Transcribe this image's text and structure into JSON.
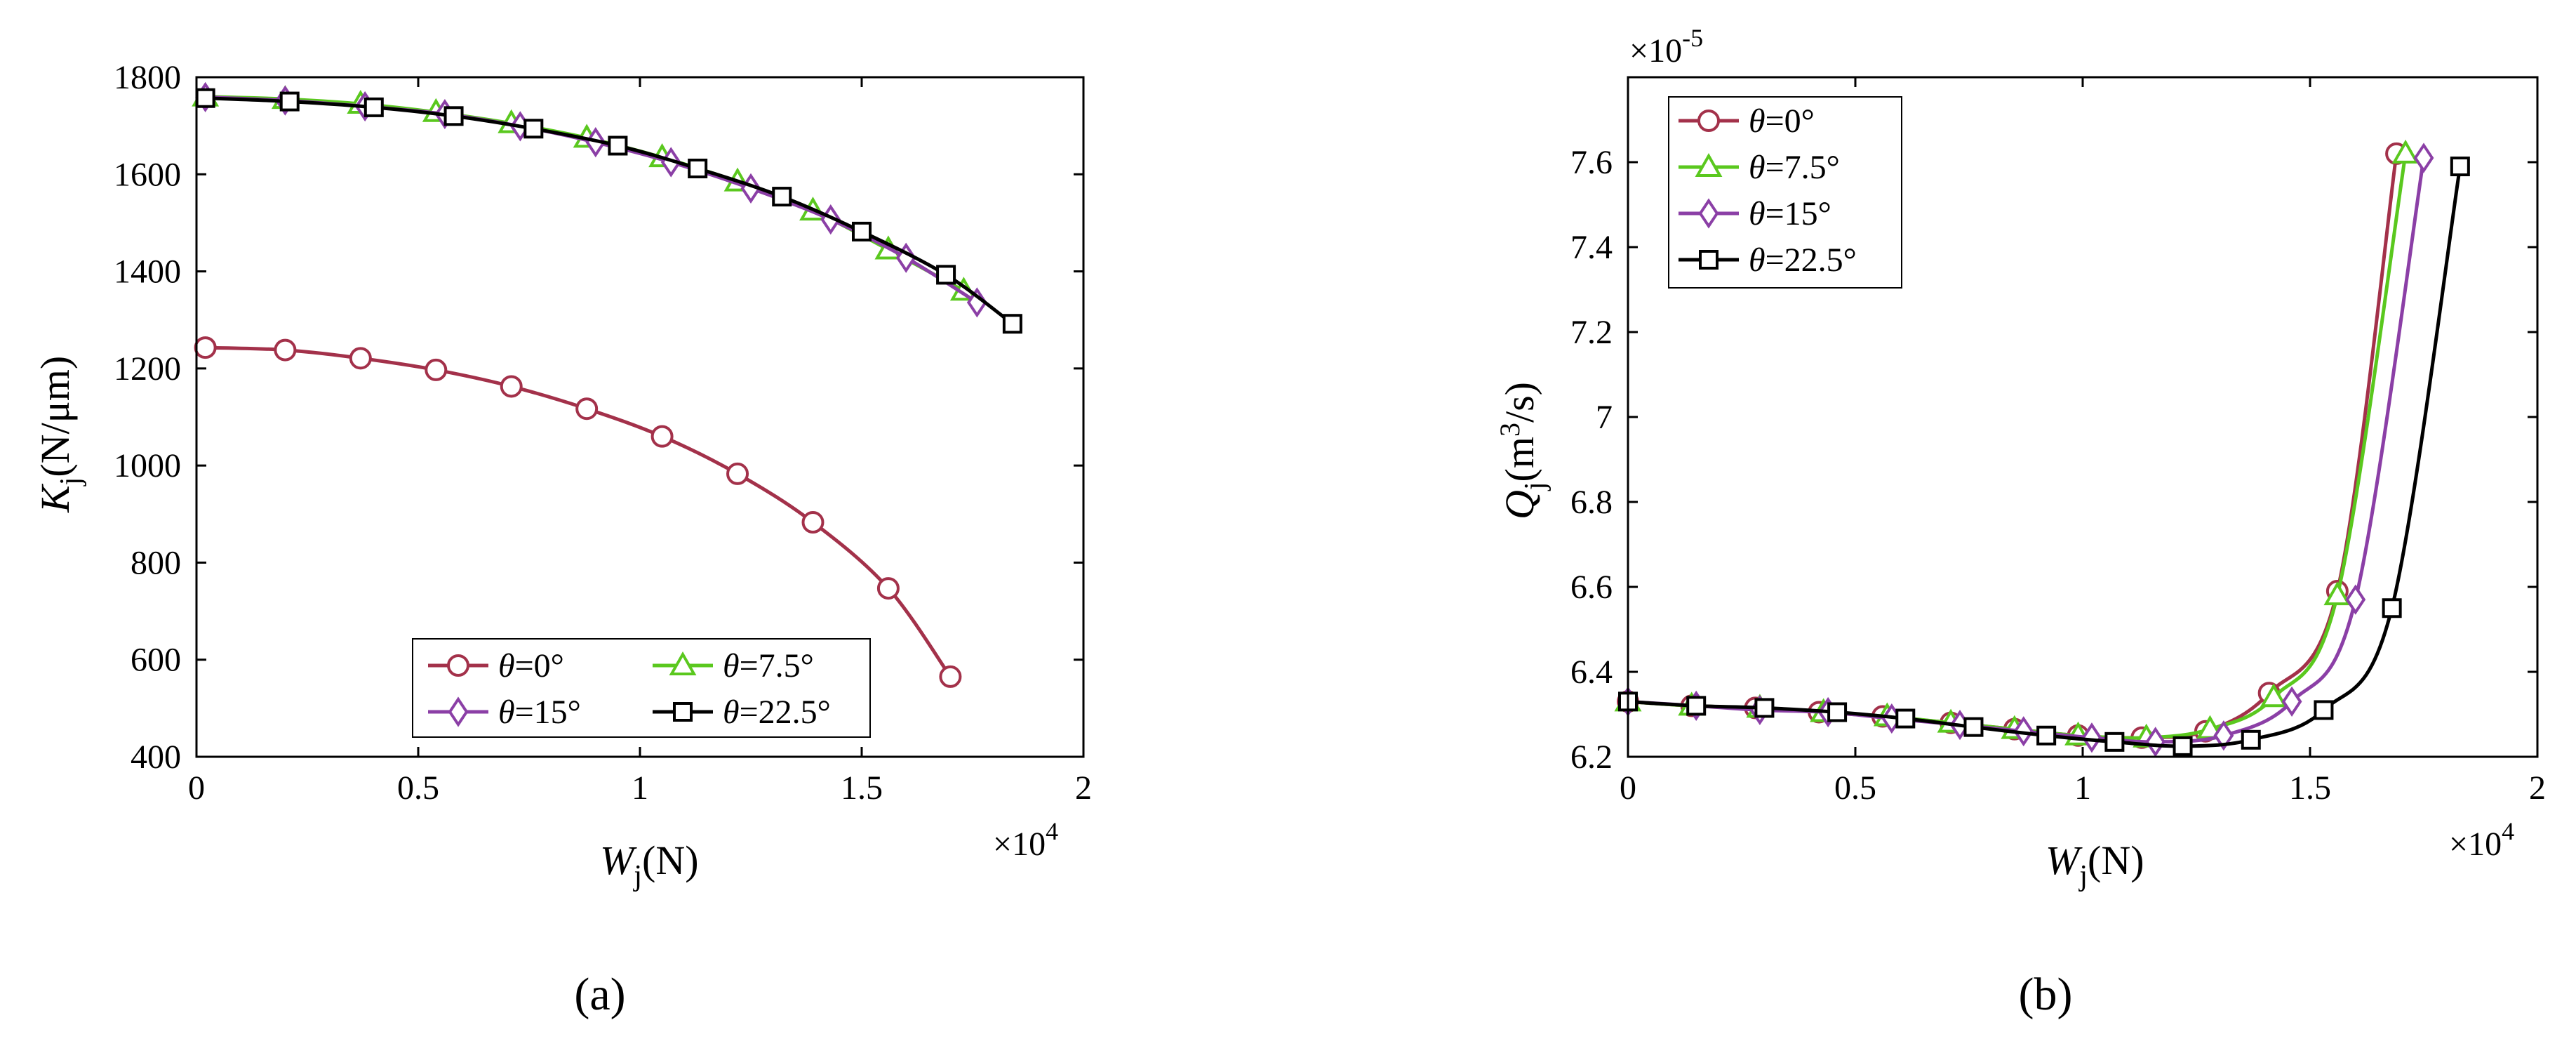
{
  "figure": {
    "charts": [
      {
        "panel_label": "(a)",
        "x_multiplier": "×10^4",
        "y_multiplier": ""
      },
      {
        "panel_label": "(b)",
        "x_multiplier": "×10^4",
        "y_multiplier": "×10^-5"
      }
    ]
  },
  "chart_data": [
    {
      "type": "line",
      "title": "",
      "xlabel": "W_j(N)",
      "ylabel": "K_j(N/μm)",
      "xlim": [
        0,
        2
      ],
      "ylim": [
        400,
        1800
      ],
      "xticks": [
        0,
        0.5,
        1,
        1.5,
        2
      ],
      "xtick_labels": [
        "0",
        "0.5",
        "1",
        "1.5",
        "2"
      ],
      "yticks": [
        400,
        600,
        800,
        1000,
        1200,
        1400,
        1600,
        1800
      ],
      "ytick_labels": [
        "400",
        "600",
        "800",
        "1000",
        "1200",
        "1400",
        "1600",
        "1800"
      ],
      "legend_position": "bottom-right",
      "legend_columns": 2,
      "series": [
        {
          "name": "θ=0°",
          "theta": "0°",
          "color": "#a3314a",
          "marker": "circle",
          "x": [
            0.02,
            0.2,
            0.37,
            0.54,
            0.71,
            0.88,
            1.05,
            1.22,
            1.39,
            1.56,
            1.7
          ],
          "y": [
            1243,
            1238,
            1221,
            1197,
            1163,
            1117,
            1060,
            983,
            883,
            747,
            565
          ]
        },
        {
          "name": "θ=7.5°",
          "theta": "7.5°",
          "color": "#5ac81e",
          "marker": "triangle",
          "x": [
            0.02,
            0.2,
            0.37,
            0.54,
            0.71,
            0.88,
            1.05,
            1.22,
            1.39,
            1.56,
            1.73
          ],
          "y": [
            1760,
            1755,
            1745,
            1728,
            1705,
            1675,
            1635,
            1585,
            1525,
            1445,
            1360
          ]
        },
        {
          "name": "θ=15°",
          "theta": "15°",
          "color": "#8b3fa6",
          "marker": "diamond",
          "x": [
            0.02,
            0.2,
            0.38,
            0.56,
            0.73,
            0.9,
            1.07,
            1.25,
            1.43,
            1.6,
            1.76
          ],
          "y": [
            1759,
            1752,
            1740,
            1724,
            1699,
            1666,
            1625,
            1571,
            1507,
            1428,
            1336
          ]
        },
        {
          "name": "θ=22.5°",
          "theta": "22.5°",
          "color": "#000000",
          "marker": "square",
          "x": [
            0.02,
            0.21,
            0.4,
            0.58,
            0.76,
            0.95,
            1.13,
            1.32,
            1.5,
            1.69,
            1.84
          ],
          "y": [
            1757,
            1750,
            1738,
            1720,
            1694,
            1659,
            1612,
            1554,
            1482,
            1393,
            1292
          ]
        }
      ]
    },
    {
      "type": "line",
      "title": "",
      "xlabel": "W_j(N)",
      "ylabel": "Q_j(m^3/s)",
      "xlim": [
        0,
        2
      ],
      "ylim": [
        6.2,
        7.8
      ],
      "xticks": [
        0,
        0.5,
        1,
        1.5,
        2
      ],
      "xtick_labels": [
        "0",
        "0.5",
        "1",
        "1.5",
        "2"
      ],
      "yticks": [
        6.2,
        6.4,
        6.6,
        6.8,
        7.0,
        7.2,
        7.4,
        7.6
      ],
      "ytick_labels": [
        "6.2",
        "6.4",
        "6.6",
        "6.8",
        "7",
        "7.2",
        "7.4",
        "7.6"
      ],
      "legend_position": "top-left",
      "legend_columns": 1,
      "series": [
        {
          "name": "θ=0°",
          "theta": "0°",
          "color": "#a3314a",
          "marker": "circle",
          "x": [
            0.0,
            0.14,
            0.28,
            0.42,
            0.56,
            0.71,
            0.85,
            0.99,
            1.13,
            1.27,
            1.41,
            1.56,
            1.69
          ],
          "y": [
            6.33,
            6.32,
            6.315,
            6.305,
            6.295,
            6.28,
            6.265,
            6.25,
            6.245,
            6.26,
            6.35,
            6.59,
            7.62
          ]
        },
        {
          "name": "θ=7.5°",
          "theta": "7.5°",
          "color": "#5ac81e",
          "marker": "triangle",
          "x": [
            0.0,
            0.14,
            0.29,
            0.43,
            0.57,
            0.71,
            0.85,
            0.99,
            1.14,
            1.28,
            1.42,
            1.56,
            1.71
          ],
          "y": [
            6.33,
            6.32,
            6.315,
            6.305,
            6.295,
            6.28,
            6.265,
            6.25,
            6.245,
            6.265,
            6.34,
            6.58,
            7.62
          ]
        },
        {
          "name": "θ=15°",
          "theta": "15°",
          "color": "#8b3fa6",
          "marker": "diamond",
          "x": [
            0.0,
            0.15,
            0.29,
            0.44,
            0.58,
            0.73,
            0.87,
            1.02,
            1.16,
            1.31,
            1.46,
            1.6,
            1.75
          ],
          "y": [
            6.33,
            6.32,
            6.31,
            6.305,
            6.29,
            6.275,
            6.26,
            6.245,
            6.235,
            6.25,
            6.33,
            6.57,
            7.61
          ]
        },
        {
          "name": "θ=22.5°",
          "theta": "22.5°",
          "color": "#000000",
          "marker": "square",
          "x": [
            0.0,
            0.15,
            0.3,
            0.46,
            0.61,
            0.76,
            0.92,
            1.07,
            1.22,
            1.37,
            1.53,
            1.68,
            1.83
          ],
          "y": [
            6.33,
            6.32,
            6.315,
            6.305,
            6.29,
            6.27,
            6.25,
            6.235,
            6.225,
            6.24,
            6.31,
            6.55,
            7.59
          ]
        }
      ]
    }
  ]
}
